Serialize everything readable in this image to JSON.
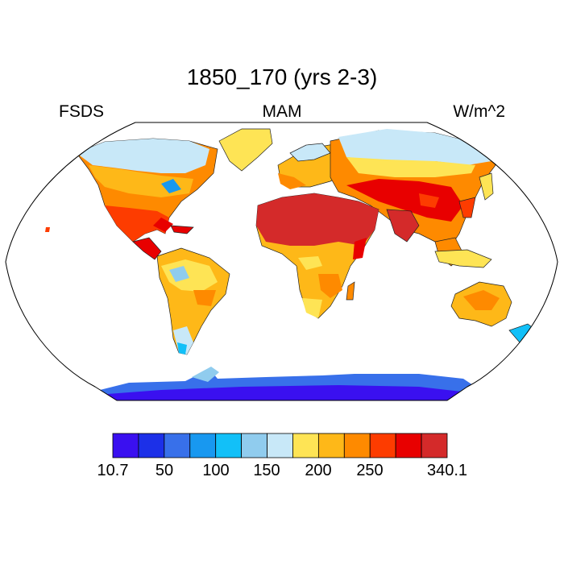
{
  "title": "1850_170 (yrs 2-3)",
  "variable": "FSDS",
  "season": "MAM",
  "units": "W/m^2",
  "colorbar": {
    "colors": [
      "#3a10f0",
      "#1c30e8",
      "#3870ea",
      "#1898f0",
      "#12c0f8",
      "#90ccee",
      "#c8e8f8",
      "#fee455",
      "#feb818",
      "#fe8a00",
      "#fd3c00",
      "#e80000",
      "#d42a2a"
    ],
    "labels": [
      "10.7",
      "50",
      "100",
      "150",
      "200",
      "250",
      "340.1"
    ]
  }
}
